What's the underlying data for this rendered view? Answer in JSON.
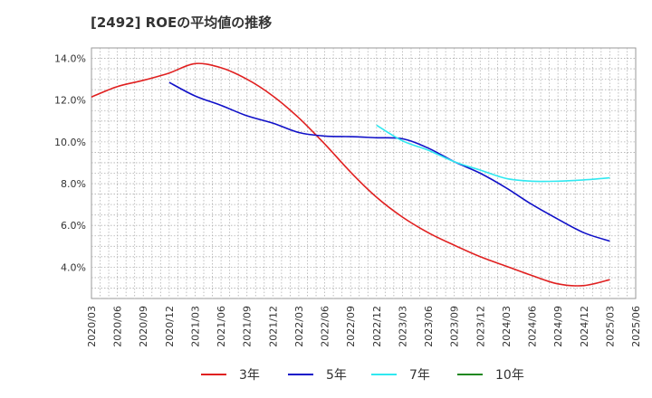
{
  "chart_data": {
    "type": "line",
    "title": "[2492]  ROEの平均値の推移",
    "xlabel": "",
    "ylabel": "",
    "x": [
      "2020/03",
      "2020/06",
      "2020/09",
      "2020/12",
      "2021/03",
      "2021/06",
      "2021/09",
      "2021/12",
      "2022/03",
      "2022/06",
      "2022/09",
      "2022/12",
      "2023/03",
      "2023/06",
      "2023/09",
      "2023/12",
      "2024/03",
      "2024/06",
      "2024/09",
      "2024/12",
      "2025/03",
      "2025/06"
    ],
    "ylim": [
      2.5,
      14.5
    ],
    "yticks": [
      4,
      6,
      8,
      10,
      12,
      14
    ],
    "ytick_labels": [
      "4.0%",
      "6.0%",
      "8.0%",
      "10.0%",
      "12.0%",
      "14.0%"
    ],
    "grid": true,
    "legend_position": "bottom",
    "series": [
      {
        "name": "3年",
        "color": "#e02020",
        "values": [
          12.15,
          12.65,
          12.95,
          13.3,
          13.75,
          13.55,
          13.0,
          12.2,
          11.15,
          9.9,
          8.55,
          7.35,
          6.4,
          5.65,
          5.05,
          4.5,
          4.05,
          3.6,
          3.2,
          3.12,
          3.4,
          null
        ]
      },
      {
        "name": "5年",
        "color": "#1010c8",
        "values": [
          null,
          null,
          null,
          12.85,
          12.2,
          11.75,
          11.25,
          10.9,
          10.45,
          10.28,
          10.25,
          10.2,
          10.15,
          9.7,
          9.05,
          8.5,
          7.8,
          7.0,
          6.3,
          5.65,
          5.25,
          null
        ]
      },
      {
        "name": "7年",
        "color": "#30e8f0",
        "values": [
          null,
          null,
          null,
          null,
          null,
          null,
          null,
          null,
          null,
          null,
          null,
          10.8,
          10.05,
          9.6,
          9.05,
          8.65,
          8.25,
          8.12,
          8.12,
          8.18,
          8.28,
          null
        ]
      },
      {
        "name": "10年",
        "color": "#208820",
        "values": [
          null,
          null,
          null,
          null,
          null,
          null,
          null,
          null,
          null,
          null,
          null,
          null,
          null,
          null,
          null,
          null,
          null,
          null,
          null,
          null,
          null,
          null
        ]
      }
    ]
  }
}
